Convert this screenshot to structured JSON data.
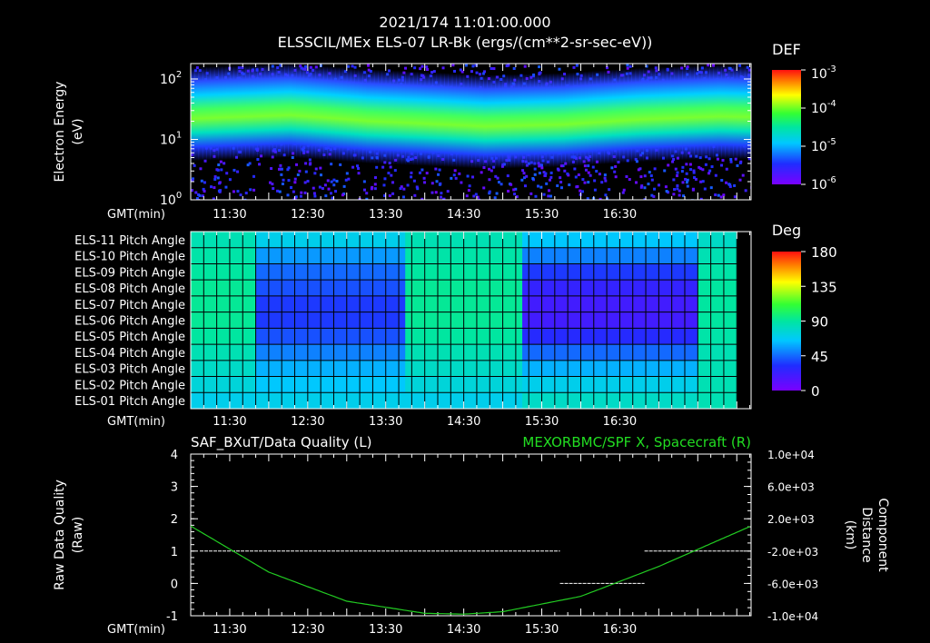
{
  "header": {
    "timestamp": "2021/174 11:01:00.000",
    "subtitle": "ELSSCIL/MEx ELS-07 LR-Bk  (ergs/(cm**2-sr-sec-eV))"
  },
  "axis_time_label": "GMT(min)",
  "time_ticks": [
    "11:30",
    "12:30",
    "13:30",
    "14:30",
    "15:30",
    "16:30"
  ],
  "chart_data": [
    {
      "type": "heatmap",
      "name": "electron-energy-spectrogram",
      "ylabel_line1": "Electron Energy",
      "ylabel_line2": "(eV)",
      "y_ticks": [
        {
          "base": "10",
          "exp": "0",
          "value": 1
        },
        {
          "base": "10",
          "exp": "1",
          "value": 10
        },
        {
          "base": "10",
          "exp": "2",
          "value": 100
        }
      ],
      "ylim": [
        1,
        180
      ],
      "y_scale": "log",
      "colorbar": {
        "title": "DEF",
        "ticks": [
          {
            "base": "10",
            "exp": "-3"
          },
          {
            "base": "10",
            "exp": "-4"
          },
          {
            "base": "10",
            "exp": "-5"
          },
          {
            "base": "10",
            "exp": "-6"
          }
        ]
      },
      "band_center_eV": [
        18,
        20,
        16,
        15,
        13,
        14,
        17,
        19,
        18,
        18
      ],
      "band_time_min": [
        15,
        75,
        135,
        165,
        225,
        285,
        345,
        405,
        465,
        525
      ]
    },
    {
      "type": "heatmap",
      "name": "pitch-angle-panel",
      "rows": [
        "ELS-11 Pitch Angle",
        "ELS-10 Pitch Angle",
        "ELS-09 Pitch Angle",
        "ELS-08 Pitch Angle",
        "ELS-07 Pitch Angle",
        "ELS-06 Pitch Angle",
        "ELS-05 Pitch Angle",
        "ELS-04 Pitch Angle",
        "ELS-03 Pitch Angle",
        "ELS-02 Pitch Angle",
        "ELS-01 Pitch Angle"
      ],
      "colorbar": {
        "title": "Deg",
        "ticks": [
          "180",
          "135",
          "90",
          "45",
          "0"
        ]
      },
      "segments_deg": [
        {
          "from_min": 0,
          "to_min": 50,
          "values": [
            85,
            88,
            90,
            92,
            92,
            92,
            90,
            85,
            80,
            75,
            70
          ]
        },
        {
          "from_min": 50,
          "to_min": 165,
          "values": [
            70,
            55,
            45,
            40,
            35,
            35,
            40,
            50,
            60,
            65,
            70
          ]
        },
        {
          "from_min": 165,
          "to_min": 255,
          "values": [
            85,
            88,
            90,
            92,
            92,
            92,
            90,
            85,
            80,
            75,
            70
          ]
        },
        {
          "from_min": 255,
          "to_min": 390,
          "values": [
            65,
            50,
            35,
            25,
            20,
            20,
            30,
            45,
            60,
            70,
            80
          ]
        },
        {
          "from_min": 390,
          "to_min": 420,
          "values": [
            80,
            85,
            88,
            90,
            90,
            90,
            88,
            85,
            85,
            85,
            85
          ]
        }
      ]
    },
    {
      "type": "line",
      "name": "data-quality-and-distance",
      "title_left": "SAF_BXuT/Data Quality (L)",
      "title_right": "MEXORBMC/SPF X, Spacecraft (R)",
      "ylabel_left_line1": "Raw Data Quality",
      "ylabel_left_line2": "(Raw)",
      "ylabel_right_line1": "Component",
      "ylabel_right_line2": "Distance",
      "ylabel_right_line3": "(km)",
      "left_ticks": [
        "4",
        "3",
        "2",
        "1",
        "0",
        "-1"
      ],
      "right_ticks": [
        "1.0e+04",
        "6.0e+03",
        "2.0e+03",
        "-2.0e+03",
        "-6.0e+03",
        "-1.0e+04"
      ],
      "ylim_left": [
        -1,
        4
      ],
      "ylim_right": [
        -10000,
        10000
      ],
      "quality_series": [
        {
          "from_min": 7,
          "to_min": 284,
          "value": 1
        },
        {
          "from_min": 284,
          "to_min": 349,
          "value": 0
        },
        {
          "from_min": 349,
          "to_min": 426,
          "value": 1
        }
      ],
      "distance_series": {
        "name": "SPF X",
        "x_min": [
          0,
          60,
          120,
          180,
          210,
          240,
          300,
          360,
          431
        ],
        "values_km": [
          1100,
          -4600,
          -8200,
          -9700,
          -9800,
          -9500,
          -7600,
          -3900,
          1100
        ]
      }
    }
  ]
}
